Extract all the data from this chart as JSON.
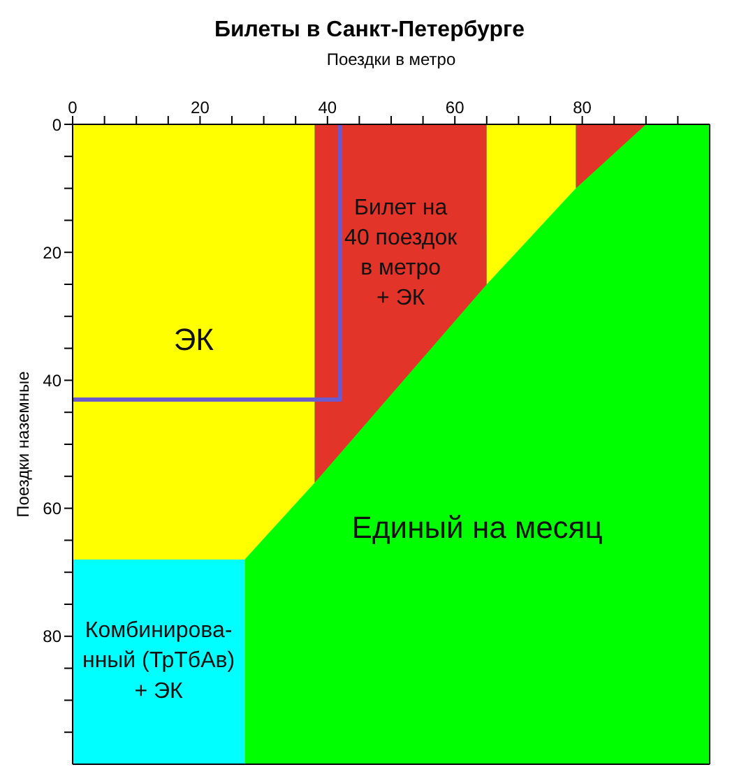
{
  "chart_data": {
    "type": "area",
    "title": "Билеты в Санкт-Петербурге",
    "xlabel": "Поездки в метро",
    "ylabel": "Поездки наземные",
    "xlim": [
      0,
      100
    ],
    "ylim": [
      100,
      0
    ],
    "xticks": [
      0,
      {
        "value": 5,
        "label": null
      },
      {
        "value": 10,
        "label": null
      },
      {
        "value": 15,
        "label": null
      },
      20,
      {
        "value": 25,
        "label": null
      },
      {
        "value": 30,
        "label": null
      },
      {
        "value": 35,
        "label": null
      },
      40,
      {
        "value": 45,
        "label": null
      },
      {
        "value": 50,
        "label": null
      },
      {
        "value": 55,
        "label": null
      },
      60,
      {
        "value": 65,
        "label": null
      },
      {
        "value": 70,
        "label": null
      },
      {
        "value": 75,
        "label": null
      },
      80,
      {
        "value": 85,
        "label": null
      },
      {
        "value": 90,
        "label": null
      },
      {
        "value": 95,
        "label": null
      }
    ],
    "yticks": [
      0,
      {
        "value": 5,
        "label": null
      },
      {
        "value": 10,
        "label": null
      },
      {
        "value": 15,
        "label": null
      },
      20,
      {
        "value": 25,
        "label": null
      },
      {
        "value": 30,
        "label": null
      },
      {
        "value": 35,
        "label": null
      },
      40,
      {
        "value": 45,
        "label": null
      },
      {
        "value": 50,
        "label": null
      },
      {
        "value": 55,
        "label": null
      },
      60,
      {
        "value": 65,
        "label": null
      },
      {
        "value": 70,
        "label": null
      },
      {
        "value": 75,
        "label": null
      },
      80,
      {
        "value": 85,
        "label": null
      },
      {
        "value": 90,
        "label": null
      },
      {
        "value": 95,
        "label": null
      }
    ],
    "grid": false,
    "legend": false,
    "series": [
      {
        "name": "Единый на месяц",
        "color": "#00ff00",
        "x": [
          27,
          100
        ],
        "values": [
          100,
          100
        ]
      },
      {
        "name": "Комбинирова-\nнный (ТрТбАв)\n+ ЭК",
        "color": "#00ffff",
        "x": [
          0,
          27
        ],
        "values": [
          100,
          100
        ]
      },
      {
        "name": "ЭК",
        "color": "#ffff00",
        "x": [
          0,
          27,
          38
        ],
        "values": [
          68,
          68,
          56
        ]
      },
      {
        "name": "Билет на\n40 поездок\nв метро\n+ ЭК",
        "color": "#e3342a",
        "x": [
          38,
          65
        ],
        "values": [
          56,
          25
        ]
      },
      {
        "color": "#ffff00",
        "x": [
          65,
          79
        ],
        "values": [
          25,
          10
        ]
      },
      {
        "color": "#e3342a",
        "x": [
          79,
          90
        ],
        "values": [
          10,
          0
        ]
      },
      {
        "type": "line",
        "color": "#6a5acd",
        "x": [
          0,
          42,
          42
        ],
        "values": [
          43,
          43,
          0
        ],
        "line_style": "solid"
      }
    ]
  }
}
